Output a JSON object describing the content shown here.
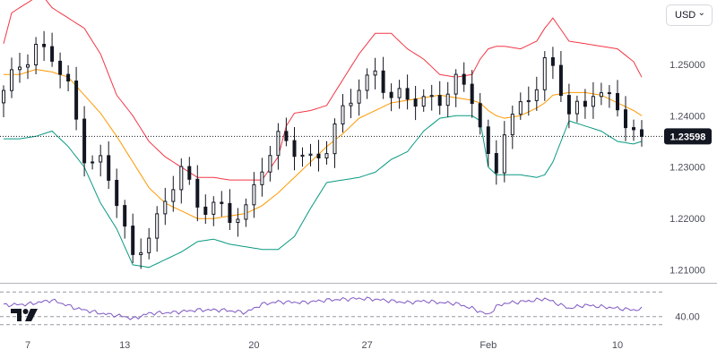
{
  "currency_select": {
    "value": "USD",
    "icon": "chevron-down-icon"
  },
  "logo": {
    "name": "TradingView",
    "icon": "tradingview-logo-icon"
  },
  "colors": {
    "upper_band": "#f23645",
    "middle_band": "#ff9800",
    "lower_band": "#089981",
    "candle": "#131722",
    "rsi_line": "#7e57c2",
    "last_price_tag": "#131722",
    "axis_text": "#4a4e59"
  },
  "chart_data": [
    {
      "type": "candlestick",
      "indicator": "Bollinger Bands",
      "last_price": 1.23598,
      "last_price_label": "1.23598",
      "ylim": [
        1.2075,
        1.2625
      ],
      "yticks": [
        1.21,
        1.22,
        1.23,
        1.24,
        1.25
      ],
      "ytick_labels": [
        "1.21000",
        "1.22000",
        "1.23000",
        "1.24000",
        "1.25000"
      ],
      "xlim": [
        0,
        79
      ],
      "xticks": [
        {
          "i": 3,
          "label": "7"
        },
        {
          "i": 15,
          "label": "13"
        },
        {
          "i": 31,
          "label": "20"
        },
        {
          "i": 45,
          "label": "27"
        },
        {
          "i": 60,
          "label": "Feb"
        },
        {
          "i": 76,
          "label": "10"
        }
      ],
      "grid": false,
      "key_points": {
        "close": [
          [
            0,
            1.244
          ],
          [
            2,
            1.25
          ],
          [
            4,
            1.254
          ],
          [
            6,
            1.251
          ],
          [
            8,
            1.245
          ],
          [
            10,
            1.233
          ],
          [
            12,
            1.231
          ],
          [
            14,
            1.223
          ],
          [
            16,
            1.212
          ],
          [
            18,
            1.218
          ],
          [
            20,
            1.222
          ],
          [
            22,
            1.23
          ],
          [
            24,
            1.223
          ],
          [
            26,
            1.223
          ],
          [
            28,
            1.219
          ],
          [
            30,
            1.222
          ],
          [
            32,
            1.231
          ],
          [
            34,
            1.235
          ],
          [
            36,
            1.233
          ],
          [
            38,
            1.232
          ],
          [
            40,
            1.234
          ],
          [
            42,
            1.24
          ],
          [
            44,
            1.246
          ],
          [
            46,
            1.249
          ],
          [
            48,
            1.243
          ],
          [
            50,
            1.243
          ],
          [
            52,
            1.244
          ],
          [
            54,
            1.243
          ],
          [
            56,
            1.246
          ],
          [
            58,
            1.244
          ],
          [
            59,
            1.239
          ],
          [
            60,
            1.232
          ],
          [
            61,
            1.229
          ],
          [
            62,
            1.237
          ],
          [
            64,
            1.241
          ],
          [
            66,
            1.247
          ],
          [
            67,
            1.251
          ],
          [
            68,
            1.249
          ],
          [
            70,
            1.24
          ],
          [
            72,
            1.242
          ],
          [
            73,
            1.246
          ],
          [
            74,
            1.245
          ],
          [
            76,
            1.241
          ],
          [
            77,
            1.238
          ],
          [
            78,
            1.236
          ],
          [
            79,
            1.23598
          ]
        ],
        "upper": [
          [
            0,
            1.254
          ],
          [
            1,
            1.26
          ],
          [
            2,
            1.261
          ],
          [
            3,
            1.262
          ],
          [
            4,
            1.263
          ],
          [
            5,
            1.263
          ],
          [
            6,
            1.261
          ],
          [
            8,
            1.259
          ],
          [
            10,
            1.257
          ],
          [
            12,
            1.252
          ],
          [
            14,
            1.244
          ],
          [
            16,
            1.24
          ],
          [
            18,
            1.235
          ],
          [
            20,
            1.232
          ],
          [
            22,
            1.23
          ],
          [
            24,
            1.228
          ],
          [
            26,
            1.228
          ],
          [
            28,
            1.2275
          ],
          [
            30,
            1.2275
          ],
          [
            32,
            1.2275
          ],
          [
            34,
            1.232
          ],
          [
            35,
            1.238
          ],
          [
            36,
            1.2405
          ],
          [
            38,
            1.241
          ],
          [
            40,
            1.242
          ],
          [
            42,
            1.247
          ],
          [
            44,
            1.252
          ],
          [
            46,
            1.256
          ],
          [
            48,
            1.256
          ],
          [
            50,
            1.253
          ],
          [
            52,
            1.251
          ],
          [
            54,
            1.248
          ],
          [
            56,
            1.2475
          ],
          [
            58,
            1.248
          ],
          [
            59,
            1.251
          ],
          [
            60,
            1.253
          ],
          [
            61,
            1.2535
          ],
          [
            62,
            1.2535
          ],
          [
            64,
            1.253
          ],
          [
            66,
            1.2545
          ],
          [
            67,
            1.257
          ],
          [
            68,
            1.259
          ],
          [
            70,
            1.2545
          ],
          [
            72,
            1.254
          ],
          [
            74,
            1.2535
          ],
          [
            76,
            1.253
          ],
          [
            78,
            1.2505
          ],
          [
            79,
            1.2475
          ]
        ],
        "middle": [
          [
            0,
            1.248
          ],
          [
            2,
            1.248
          ],
          [
            4,
            1.249
          ],
          [
            6,
            1.2485
          ],
          [
            8,
            1.2475
          ],
          [
            10,
            1.244
          ],
          [
            12,
            1.2405
          ],
          [
            14,
            1.236
          ],
          [
            16,
            1.231
          ],
          [
            18,
            1.226
          ],
          [
            20,
            1.223
          ],
          [
            22,
            1.2215
          ],
          [
            24,
            1.22
          ],
          [
            26,
            1.22
          ],
          [
            28,
            1.2205
          ],
          [
            30,
            1.221
          ],
          [
            32,
            1.2225
          ],
          [
            34,
            1.225
          ],
          [
            36,
            1.228
          ],
          [
            38,
            1.231
          ],
          [
            40,
            1.234
          ],
          [
            42,
            1.2365
          ],
          [
            44,
            1.2395
          ],
          [
            46,
            1.241
          ],
          [
            48,
            1.2425
          ],
          [
            50,
            1.243
          ],
          [
            52,
            1.2435
          ],
          [
            54,
            1.244
          ],
          [
            56,
            1.2435
          ],
          [
            58,
            1.243
          ],
          [
            59,
            1.2425
          ],
          [
            60,
            1.241
          ],
          [
            61,
            1.24
          ],
          [
            62,
            1.2395
          ],
          [
            64,
            1.24
          ],
          [
            66,
            1.2415
          ],
          [
            67,
            1.2425
          ],
          [
            68,
            1.244
          ],
          [
            70,
            1.2445
          ],
          [
            72,
            1.2445
          ],
          [
            74,
            1.244
          ],
          [
            76,
            1.2425
          ],
          [
            78,
            1.241
          ],
          [
            79,
            1.24
          ]
        ],
        "lower": [
          [
            0,
            1.2355
          ],
          [
            2,
            1.2355
          ],
          [
            4,
            1.236
          ],
          [
            6,
            1.237
          ],
          [
            8,
            1.234
          ],
          [
            10,
            1.23
          ],
          [
            12,
            1.223
          ],
          [
            14,
            1.218
          ],
          [
            16,
            1.211
          ],
          [
            18,
            1.2105
          ],
          [
            20,
            1.212
          ],
          [
            22,
            1.2135
          ],
          [
            24,
            1.2155
          ],
          [
            26,
            1.216
          ],
          [
            28,
            1.215
          ],
          [
            30,
            1.2145
          ],
          [
            32,
            1.214
          ],
          [
            34,
            1.214
          ],
          [
            36,
            1.2165
          ],
          [
            38,
            1.222
          ],
          [
            40,
            1.227
          ],
          [
            42,
            1.2275
          ],
          [
            44,
            1.228
          ],
          [
            46,
            1.229
          ],
          [
            48,
            1.2315
          ],
          [
            50,
            1.233
          ],
          [
            52,
            1.237
          ],
          [
            54,
            1.2395
          ],
          [
            56,
            1.24
          ],
          [
            58,
            1.24
          ],
          [
            59,
            1.239
          ],
          [
            60,
            1.23
          ],
          [
            61,
            1.2285
          ],
          [
            62,
            1.2285
          ],
          [
            64,
            1.2285
          ],
          [
            66,
            1.228
          ],
          [
            67,
            1.2285
          ],
          [
            68,
            1.231
          ],
          [
            70,
            1.239
          ],
          [
            72,
            1.238
          ],
          [
            74,
            1.237
          ],
          [
            76,
            1.235
          ],
          [
            78,
            1.2345
          ],
          [
            79,
            1.235
          ]
        ]
      }
    },
    {
      "type": "line",
      "indicator": "RSI",
      "ylim": [
        20,
        80
      ],
      "yticks": [
        40
      ],
      "ytick_labels": [
        "40.00"
      ],
      "level_lines": [
        30,
        40,
        70
      ],
      "key_points": [
        [
          0,
          54
        ],
        [
          3,
          55
        ],
        [
          6,
          60
        ],
        [
          9,
          50
        ],
        [
          12,
          44
        ],
        [
          15,
          40
        ],
        [
          16,
          37
        ],
        [
          18,
          44
        ],
        [
          21,
          45
        ],
        [
          24,
          48
        ],
        [
          27,
          48
        ],
        [
          30,
          45
        ],
        [
          32,
          55
        ],
        [
          34,
          58
        ],
        [
          37,
          57
        ],
        [
          40,
          60
        ],
        [
          42,
          61
        ],
        [
          44,
          62
        ],
        [
          46,
          61
        ],
        [
          48,
          59
        ],
        [
          50,
          57
        ],
        [
          52,
          59
        ],
        [
          54,
          57
        ],
        [
          56,
          56
        ],
        [
          58,
          50
        ],
        [
          59,
          46
        ],
        [
          60,
          42
        ],
        [
          61,
          52
        ],
        [
          62,
          56
        ],
        [
          64,
          58
        ],
        [
          66,
          60
        ],
        [
          67,
          62
        ],
        [
          68,
          58
        ],
        [
          70,
          50
        ],
        [
          72,
          54
        ],
        [
          74,
          52
        ],
        [
          76,
          50
        ],
        [
          78,
          48
        ],
        [
          79,
          49
        ]
      ]
    }
  ]
}
